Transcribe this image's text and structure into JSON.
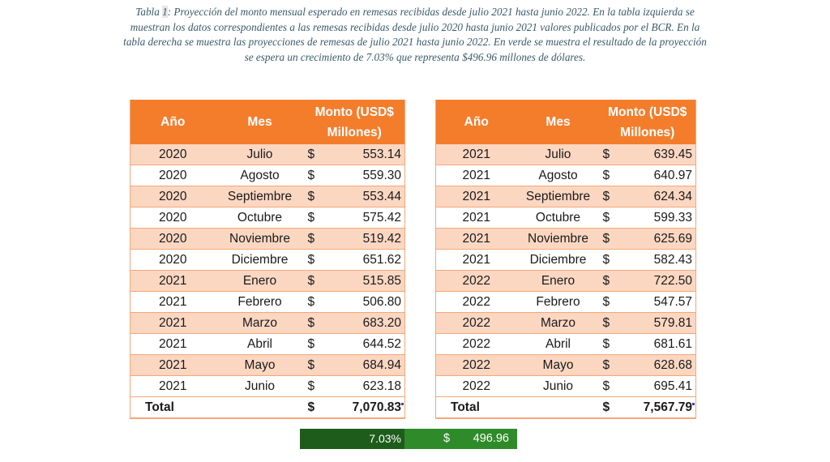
{
  "caption": {
    "prefix": "Tabla ",
    "number": "1",
    "text": ": Proyección del monto mensual esperado en remesas recibidas desde julio 2021 hasta junio 2022. En la tabla izquierda se muestran los datos correspondientes a las remesas recibidas desde julio 2020 hasta junio 2021 valores publicados por el BCR. En la tabla derecha se muestra las proyecciones de remesas de julio 2021 hasta junio 2022. En verde se muestra el resultado de la proyección se espera un crecimiento de 7.03% que representa $496.96 millones de dólares."
  },
  "headers": {
    "ano": "Año",
    "mes": "Mes",
    "monto_line1": "Monto (USD$",
    "monto_line2": "Millones)"
  },
  "currency": "$",
  "left_table": {
    "rows": [
      {
        "ano": "2020",
        "mes": "Julio",
        "monto": "553.14"
      },
      {
        "ano": "2020",
        "mes": "Agosto",
        "monto": "559.30"
      },
      {
        "ano": "2020",
        "mes": "Septiembre",
        "monto": "553.44"
      },
      {
        "ano": "2020",
        "mes": "Octubre",
        "monto": "575.42"
      },
      {
        "ano": "2020",
        "mes": "Noviembre",
        "monto": "519.42"
      },
      {
        "ano": "2020",
        "mes": "Diciembre",
        "monto": "651.62"
      },
      {
        "ano": "2021",
        "mes": "Enero",
        "monto": "515.85"
      },
      {
        "ano": "2021",
        "mes": "Febrero",
        "monto": "506.80"
      },
      {
        "ano": "2021",
        "mes": "Marzo",
        "monto": "683.20"
      },
      {
        "ano": "2021",
        "mes": "Abril",
        "monto": "644.52"
      },
      {
        "ano": "2021",
        "mes": "Mayo",
        "monto": "684.94"
      },
      {
        "ano": "2021",
        "mes": "Junio",
        "monto": "623.18"
      }
    ],
    "total_label": "Total",
    "total_value": "7,070.83"
  },
  "right_table": {
    "rows": [
      {
        "ano": "2021",
        "mes": "Julio",
        "monto": "639.45"
      },
      {
        "ano": "2021",
        "mes": "Agosto",
        "monto": "640.97"
      },
      {
        "ano": "2021",
        "mes": "Septiembre",
        "monto": "624.34"
      },
      {
        "ano": "2021",
        "mes": "Octubre",
        "monto": "599.33"
      },
      {
        "ano": "2021",
        "mes": "Noviembre",
        "monto": "625.69"
      },
      {
        "ano": "2021",
        "mes": "Diciembre",
        "monto": "582.43"
      },
      {
        "ano": "2022",
        "mes": "Enero",
        "monto": "722.50"
      },
      {
        "ano": "2022",
        "mes": "Febrero",
        "monto": "547.57"
      },
      {
        "ano": "2022",
        "mes": "Marzo",
        "monto": "579.81"
      },
      {
        "ano": "2022",
        "mes": "Abril",
        "monto": "681.61"
      },
      {
        "ano": "2022",
        "mes": "Mayo",
        "monto": "628.68"
      },
      {
        "ano": "2022",
        "mes": "Junio",
        "monto": "695.41"
      }
    ],
    "total_label": "Total",
    "total_value": "7,567.79"
  },
  "summary": {
    "growth_pct": "7.03%",
    "currency": "$",
    "growth_amount": "496.96"
  },
  "colors": {
    "header_orange": "#f47d2c",
    "row_peach": "#fbd7c2",
    "dark_green": "#1e5c1b",
    "green": "#2f8a2a"
  }
}
